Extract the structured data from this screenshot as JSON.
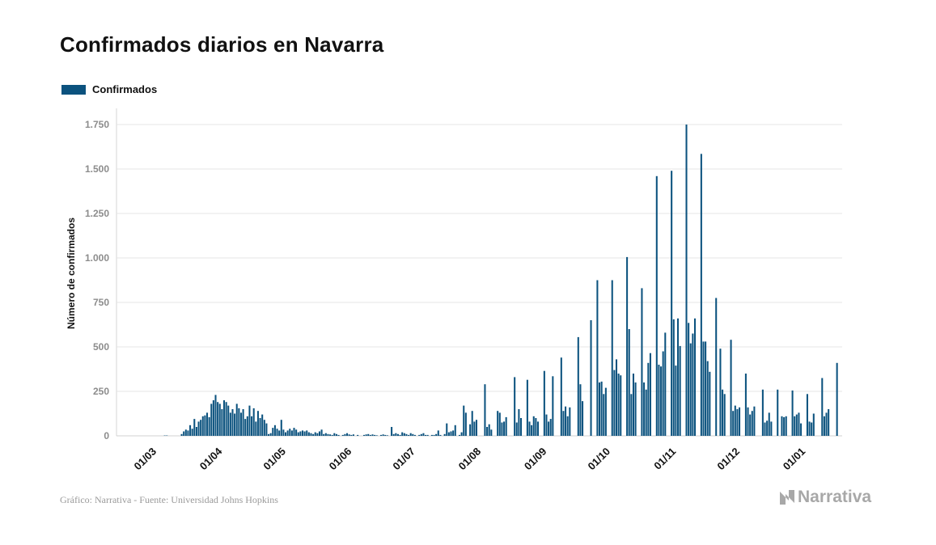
{
  "colors": {
    "bar": "#0b527e",
    "grid": "#e4e4e4",
    "tick_text": "#8c8c8c",
    "source_text": "#9a9a9a"
  },
  "chart_data": {
    "type": "bar",
    "title": "Confirmados diarios en Navarra",
    "ylabel": "Número de confirmados",
    "xlabel": "",
    "ylim": [
      0,
      1750
    ],
    "y_ticks": [
      0,
      250,
      500,
      750,
      1000,
      1250,
      1500,
      1750
    ],
    "y_tick_labels": [
      "0",
      "250",
      "500",
      "750",
      "1.000",
      "1.250",
      "1.500",
      "1.750"
    ],
    "x_ticks": [
      {
        "date": "2020-03-01",
        "label": "01/03"
      },
      {
        "date": "2020-04-01",
        "label": "01/04"
      },
      {
        "date": "2020-05-01",
        "label": "01/05"
      },
      {
        "date": "2020-06-01",
        "label": "01/06"
      },
      {
        "date": "2020-07-01",
        "label": "01/07"
      },
      {
        "date": "2020-08-01",
        "label": "01/08"
      },
      {
        "date": "2020-09-01",
        "label": "01/09"
      },
      {
        "date": "2020-10-01",
        "label": "01/10"
      },
      {
        "date": "2020-11-01",
        "label": "01/11"
      },
      {
        "date": "2020-12-01",
        "label": "01/12"
      },
      {
        "date": "2021-01-01",
        "label": "01/01"
      }
    ],
    "grid": true,
    "legend_position": "top-left",
    "series": [
      {
        "name": "Confirmados",
        "x_start": "2020-03-01",
        "x_end": "2021-01-04",
        "values": [
          0,
          0,
          0,
          0,
          0,
          0,
          0,
          0,
          0,
          2,
          2,
          0,
          0,
          0,
          0,
          0,
          0,
          10,
          25,
          35,
          30,
          60,
          40,
          95,
          50,
          80,
          90,
          110,
          115,
          130,
          105,
          180,
          200,
          230,
          190,
          180,
          150,
          200,
          190,
          170,
          130,
          150,
          125,
          180,
          155,
          130,
          150,
          95,
          110,
          170,
          110,
          155,
          80,
          140,
          100,
          120,
          90,
          70,
          10,
          15,
          45,
          60,
          40,
          30,
          90,
          35,
          20,
          30,
          40,
          30,
          45,
          35,
          20,
          25,
          30,
          25,
          30,
          20,
          15,
          10,
          20,
          15,
          25,
          35,
          10,
          15,
          10,
          8,
          5,
          15,
          10,
          5,
          0,
          5,
          10,
          15,
          8,
          5,
          8,
          0,
          5,
          0,
          0,
          5,
          8,
          10,
          5,
          8,
          5,
          3,
          0,
          5,
          8,
          5,
          3,
          0,
          50,
          10,
          15,
          10,
          5,
          20,
          15,
          10,
          5,
          15,
          10,
          5,
          0,
          5,
          10,
          15,
          5,
          5,
          0,
          5,
          5,
          10,
          30,
          5,
          0,
          10,
          70,
          20,
          25,
          30,
          60,
          0,
          5,
          20,
          170,
          130,
          0,
          65,
          140,
          80,
          90,
          0,
          0,
          0,
          290,
          50,
          65,
          35,
          0,
          0,
          140,
          130,
          75,
          80,
          105,
          0,
          0,
          0,
          330,
          75,
          150,
          100,
          0,
          0,
          315,
          80,
          60,
          110,
          100,
          80,
          0,
          0,
          365,
          120,
          80,
          95,
          335,
          0,
          0,
          0,
          440,
          140,
          165,
          110,
          160,
          0,
          0,
          0,
          555,
          290,
          195,
          0,
          0,
          0,
          650,
          0,
          0,
          875,
          300,
          305,
          235,
          270,
          0,
          0,
          875,
          370,
          430,
          350,
          340,
          0,
          0,
          1005,
          600,
          235,
          350,
          300,
          0,
          0,
          830,
          300,
          260,
          410,
          465,
          0,
          0,
          1460,
          400,
          390,
          475,
          580,
          0,
          0,
          1490,
          655,
          395,
          660,
          505,
          0,
          0,
          1750,
          635,
          520,
          575,
          660,
          0,
          0,
          1585,
          530,
          530,
          420,
          360,
          0,
          0,
          775,
          0,
          490,
          260,
          235,
          0,
          0,
          540,
          140,
          170,
          150,
          160,
          0,
          0,
          350,
          160,
          120,
          140,
          165,
          0,
          0,
          0,
          260,
          75,
          85,
          130,
          80,
          0,
          0,
          260,
          0,
          110,
          105,
          110,
          0,
          0,
          255,
          110,
          120,
          130,
          70,
          0,
          0,
          235,
          80,
          75,
          125,
          0,
          0,
          0,
          325,
          110,
          130,
          150,
          0,
          0,
          0,
          410
        ]
      }
    ]
  },
  "footer": {
    "source": "Gráfico: Narrativa - Fuente: Universidad Johns Hopkins",
    "brand": "Narrativa"
  }
}
